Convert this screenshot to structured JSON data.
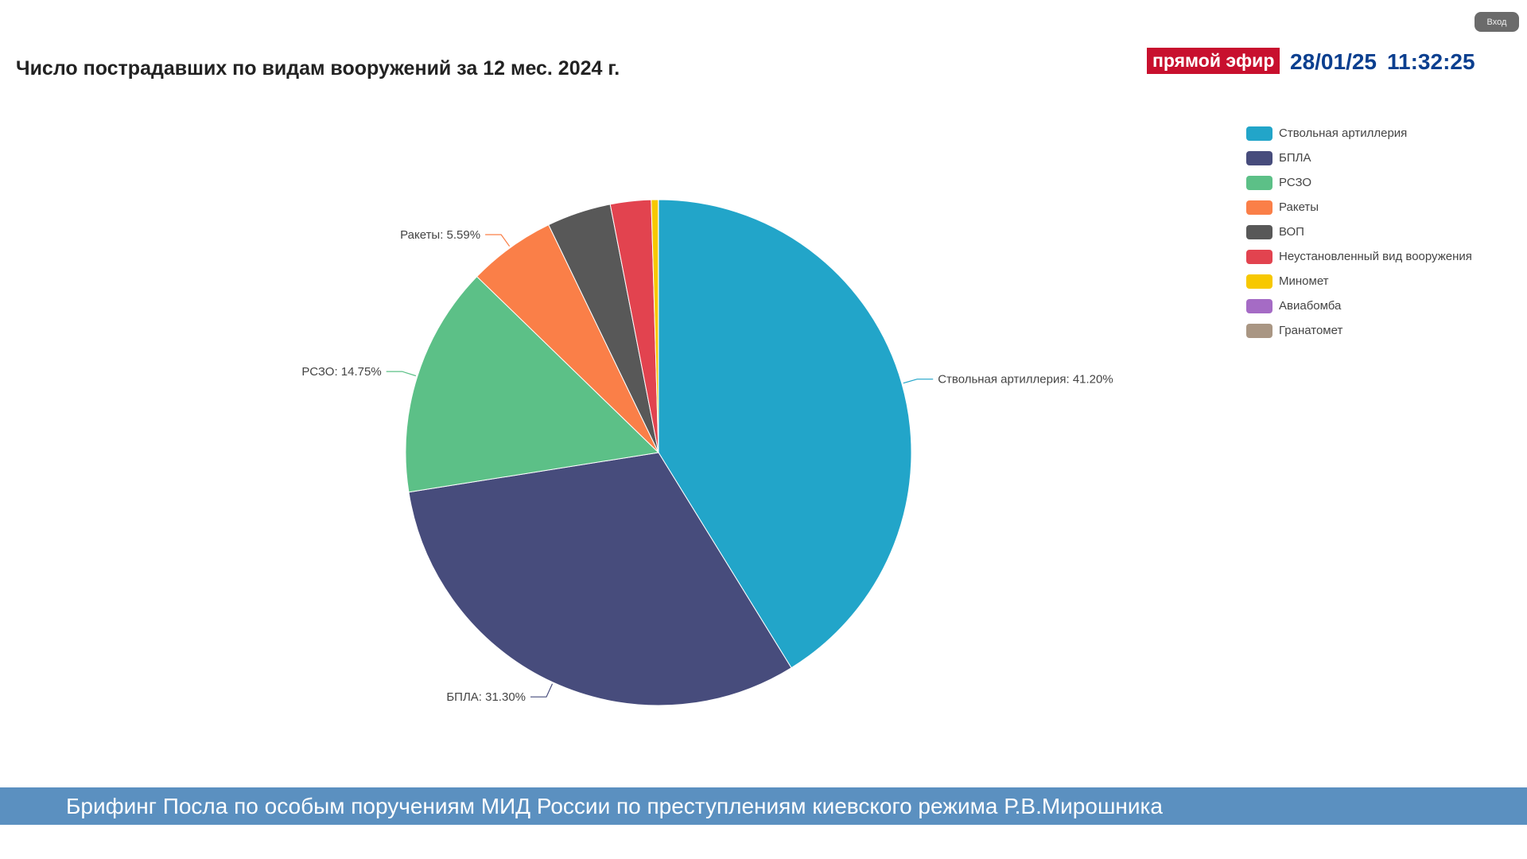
{
  "header": {
    "title": "Число пострадавших по видам вооружений за 12 мес. 2024 г.",
    "login_label": "Вход"
  },
  "broadcast": {
    "live_label": "прямой эфир",
    "date": "28/01/25",
    "time": "11:32:25",
    "live_color": "#c8102e",
    "text_color": "#0b3f8f"
  },
  "caption": {
    "text": "Брифинг Посла по особым поручениям МИД России по преступлениям киевского режима Р.В.Мирошника",
    "bar_color": "#5b90c0"
  },
  "chart_data": {
    "type": "pie",
    "title": "Число пострадавших по видам вооружений за 12 мес. 2024 г.",
    "legend_position": "right",
    "slices": [
      {
        "name": "Ствольная артиллерия",
        "value": 41.2,
        "color": "#22a5c9",
        "label": "Ствольная артиллерия: 41.20%"
      },
      {
        "name": "БПЛА",
        "value": 31.3,
        "color": "#474c7c",
        "label": "БПЛА: 31.30%"
      },
      {
        "name": "РСЗО",
        "value": 14.75,
        "color": "#5cc087",
        "label": "РСЗО: 14.75%"
      },
      {
        "name": "Ракеты",
        "value": 5.59,
        "color": "#fa7f48",
        "label": "Ракеты: 5.59%"
      },
      {
        "name": "ВОП",
        "value": 4.1,
        "color": "#585858",
        "label": ""
      },
      {
        "name": "Неустановленный вид вооружения",
        "value": 2.6,
        "color": "#e2434f",
        "label": ""
      },
      {
        "name": "Миномет",
        "value": 0.45,
        "color": "#f7c800",
        "label": ""
      },
      {
        "name": "Авиабомба",
        "value": 0.0,
        "color": "#a56bc5",
        "label": ""
      },
      {
        "name": "Гранатомет",
        "value": 0.01,
        "color": "#a99683",
        "label": ""
      }
    ]
  }
}
